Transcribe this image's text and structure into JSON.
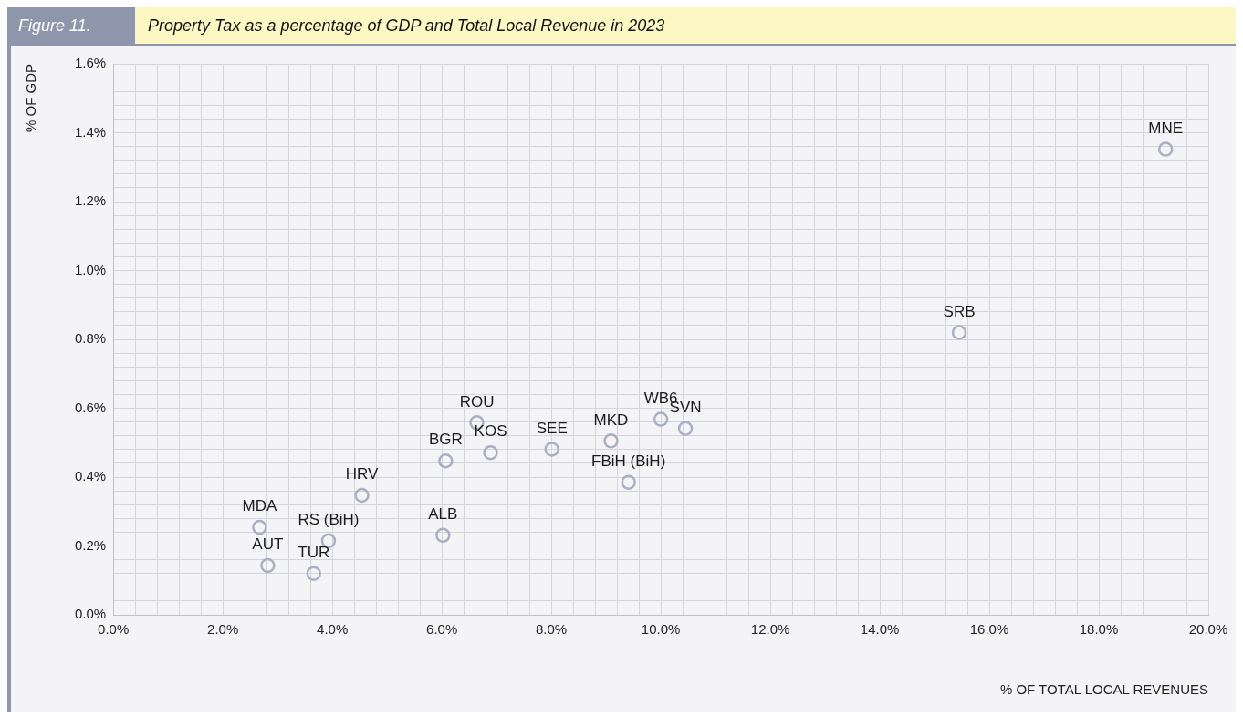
{
  "chart_data": {
    "type": "scatter",
    "title": "Property Tax as a percentage of GDP and Total Local Revenue in 2023",
    "subtitle": "Figure 11.",
    "xlabel": "% OF TOTAL LOCAL REVENUES",
    "ylabel": "% OF GDP",
    "x": [
      2.67,
      2.82,
      3.93,
      3.66,
      4.54,
      6.02,
      6.07,
      6.64,
      6.89,
      8.01,
      9.09,
      9.41,
      10.0,
      10.45,
      15.45,
      19.22
    ],
    "series": [
      {
        "color": "#a9b0c4",
        "values": [
          0.254,
          0.143,
          0.215,
          0.12,
          0.347,
          0.231,
          0.447,
          0.558,
          0.471,
          0.481,
          0.505,
          0.385,
          0.568,
          0.541,
          0.82,
          1.352
        ]
      }
    ],
    "annotations": [
      {
        "text": "MDA",
        "x": 2.67,
        "y": 0.254
      },
      {
        "text": "AUT",
        "x": 2.82,
        "y": 0.143
      },
      {
        "text": "RS (BiH)",
        "x": 3.93,
        "y": 0.215
      },
      {
        "text": "TUR",
        "x": 3.66,
        "y": 0.12
      },
      {
        "text": "HRV",
        "x": 4.54,
        "y": 0.347
      },
      {
        "text": "ALB",
        "x": 6.02,
        "y": 0.231
      },
      {
        "text": "BGR",
        "x": 6.07,
        "y": 0.447
      },
      {
        "text": "ROU",
        "x": 6.64,
        "y": 0.558
      },
      {
        "text": "KOS",
        "x": 6.89,
        "y": 0.471
      },
      {
        "text": "SEE",
        "x": 8.01,
        "y": 0.481
      },
      {
        "text": "MKD",
        "x": 9.09,
        "y": 0.505
      },
      {
        "text": "FBiH (BiH)",
        "x": 9.41,
        "y": 0.385
      },
      {
        "text": "WB6",
        "x": 10.0,
        "y": 0.568
      },
      {
        "text": "SVN",
        "x": 10.45,
        "y": 0.541
      },
      {
        "text": "SRB",
        "x": 15.45,
        "y": 0.82
      },
      {
        "text": "MNE",
        "x": 19.22,
        "y": 1.352
      }
    ],
    "xlim": [
      0,
      20
    ],
    "xticks": [
      {
        "value": 0,
        "label": "0.0%"
      },
      {
        "value": 0.4,
        "label": null
      },
      {
        "value": 0.8,
        "label": null
      },
      {
        "value": 1.2,
        "label": null
      },
      {
        "value": 1.6,
        "label": null
      },
      {
        "value": 2,
        "label": "2.0%"
      },
      {
        "value": 2.4,
        "label": null
      },
      {
        "value": 2.8,
        "label": null
      },
      {
        "value": 3.2,
        "label": null
      },
      {
        "value": 3.6,
        "label": null
      },
      {
        "value": 4,
        "label": "4.0%"
      },
      {
        "value": 4.4,
        "label": null
      },
      {
        "value": 4.8,
        "label": null
      },
      {
        "value": 5.2,
        "label": null
      },
      {
        "value": 5.6,
        "label": null
      },
      {
        "value": 6,
        "label": "6.0%"
      },
      {
        "value": 6.4,
        "label": null
      },
      {
        "value": 6.8,
        "label": null
      },
      {
        "value": 7.2,
        "label": null
      },
      {
        "value": 7.6,
        "label": null
      },
      {
        "value": 8,
        "label": "8.0%"
      },
      {
        "value": 8.4,
        "label": null
      },
      {
        "value": 8.8,
        "label": null
      },
      {
        "value": 9.2,
        "label": null
      },
      {
        "value": 9.6,
        "label": null
      },
      {
        "value": 10,
        "label": "10.0%"
      },
      {
        "value": 10.4,
        "label": null
      },
      {
        "value": 10.8,
        "label": null
      },
      {
        "value": 11.2,
        "label": null
      },
      {
        "value": 11.6,
        "label": null
      },
      {
        "value": 12,
        "label": "12.0%"
      },
      {
        "value": 12.4,
        "label": null
      },
      {
        "value": 12.8,
        "label": null
      },
      {
        "value": 13.2,
        "label": null
      },
      {
        "value": 13.6,
        "label": null
      },
      {
        "value": 14,
        "label": "14.0%"
      },
      {
        "value": 14.4,
        "label": null
      },
      {
        "value": 14.8,
        "label": null
      },
      {
        "value": 15.2,
        "label": null
      },
      {
        "value": 15.6,
        "label": null
      },
      {
        "value": 16,
        "label": "16.0%"
      },
      {
        "value": 16.4,
        "label": null
      },
      {
        "value": 16.8,
        "label": null
      },
      {
        "value": 17.2,
        "label": null
      },
      {
        "value": 17.6,
        "label": null
      },
      {
        "value": 18,
        "label": "18.0%"
      },
      {
        "value": 18.4,
        "label": null
      },
      {
        "value": 18.8,
        "label": null
      },
      {
        "value": 19.2,
        "label": null
      },
      {
        "value": 19.6,
        "label": null
      },
      {
        "value": 20,
        "label": "20.0%"
      }
    ],
    "ylim": [
      0,
      1.6
    ],
    "yticks": [
      {
        "value": 0,
        "label": "0.0%"
      },
      {
        "value": 0.04,
        "label": null
      },
      {
        "value": 0.08,
        "label": null
      },
      {
        "value": 0.12,
        "label": null
      },
      {
        "value": 0.16,
        "label": null
      },
      {
        "value": 0.2,
        "label": "0.2%"
      },
      {
        "value": 0.24,
        "label": null
      },
      {
        "value": 0.28,
        "label": null
      },
      {
        "value": 0.32,
        "label": null
      },
      {
        "value": 0.36,
        "label": null
      },
      {
        "value": 0.4,
        "label": "0.4%"
      },
      {
        "value": 0.44,
        "label": null
      },
      {
        "value": 0.48,
        "label": null
      },
      {
        "value": 0.52,
        "label": null
      },
      {
        "value": 0.56,
        "label": null
      },
      {
        "value": 0.6,
        "label": "0.6%"
      },
      {
        "value": 0.64,
        "label": null
      },
      {
        "value": 0.68,
        "label": null
      },
      {
        "value": 0.72,
        "label": null
      },
      {
        "value": 0.76,
        "label": null
      },
      {
        "value": 0.8,
        "label": "0.8%"
      },
      {
        "value": 0.84,
        "label": null
      },
      {
        "value": 0.88,
        "label": null
      },
      {
        "value": 0.92,
        "label": null
      },
      {
        "value": 0.96,
        "label": null
      },
      {
        "value": 1.0,
        "label": "1.0%"
      },
      {
        "value": 1.04,
        "label": null
      },
      {
        "value": 1.08,
        "label": null
      },
      {
        "value": 1.12,
        "label": null
      },
      {
        "value": 1.16,
        "label": null
      },
      {
        "value": 1.2,
        "label": "1.2%"
      },
      {
        "value": 1.24,
        "label": null
      },
      {
        "value": 1.28,
        "label": null
      },
      {
        "value": 1.32,
        "label": null
      },
      {
        "value": 1.36,
        "label": null
      },
      {
        "value": 1.4,
        "label": "1.4%"
      },
      {
        "value": 1.44,
        "label": null
      },
      {
        "value": 1.48,
        "label": null
      },
      {
        "value": 1.52,
        "label": null
      },
      {
        "value": 1.56,
        "label": null
      },
      {
        "value": 1.6,
        "label": "1.6%"
      }
    ],
    "grid": true,
    "legend": false,
    "marker": "circle"
  }
}
